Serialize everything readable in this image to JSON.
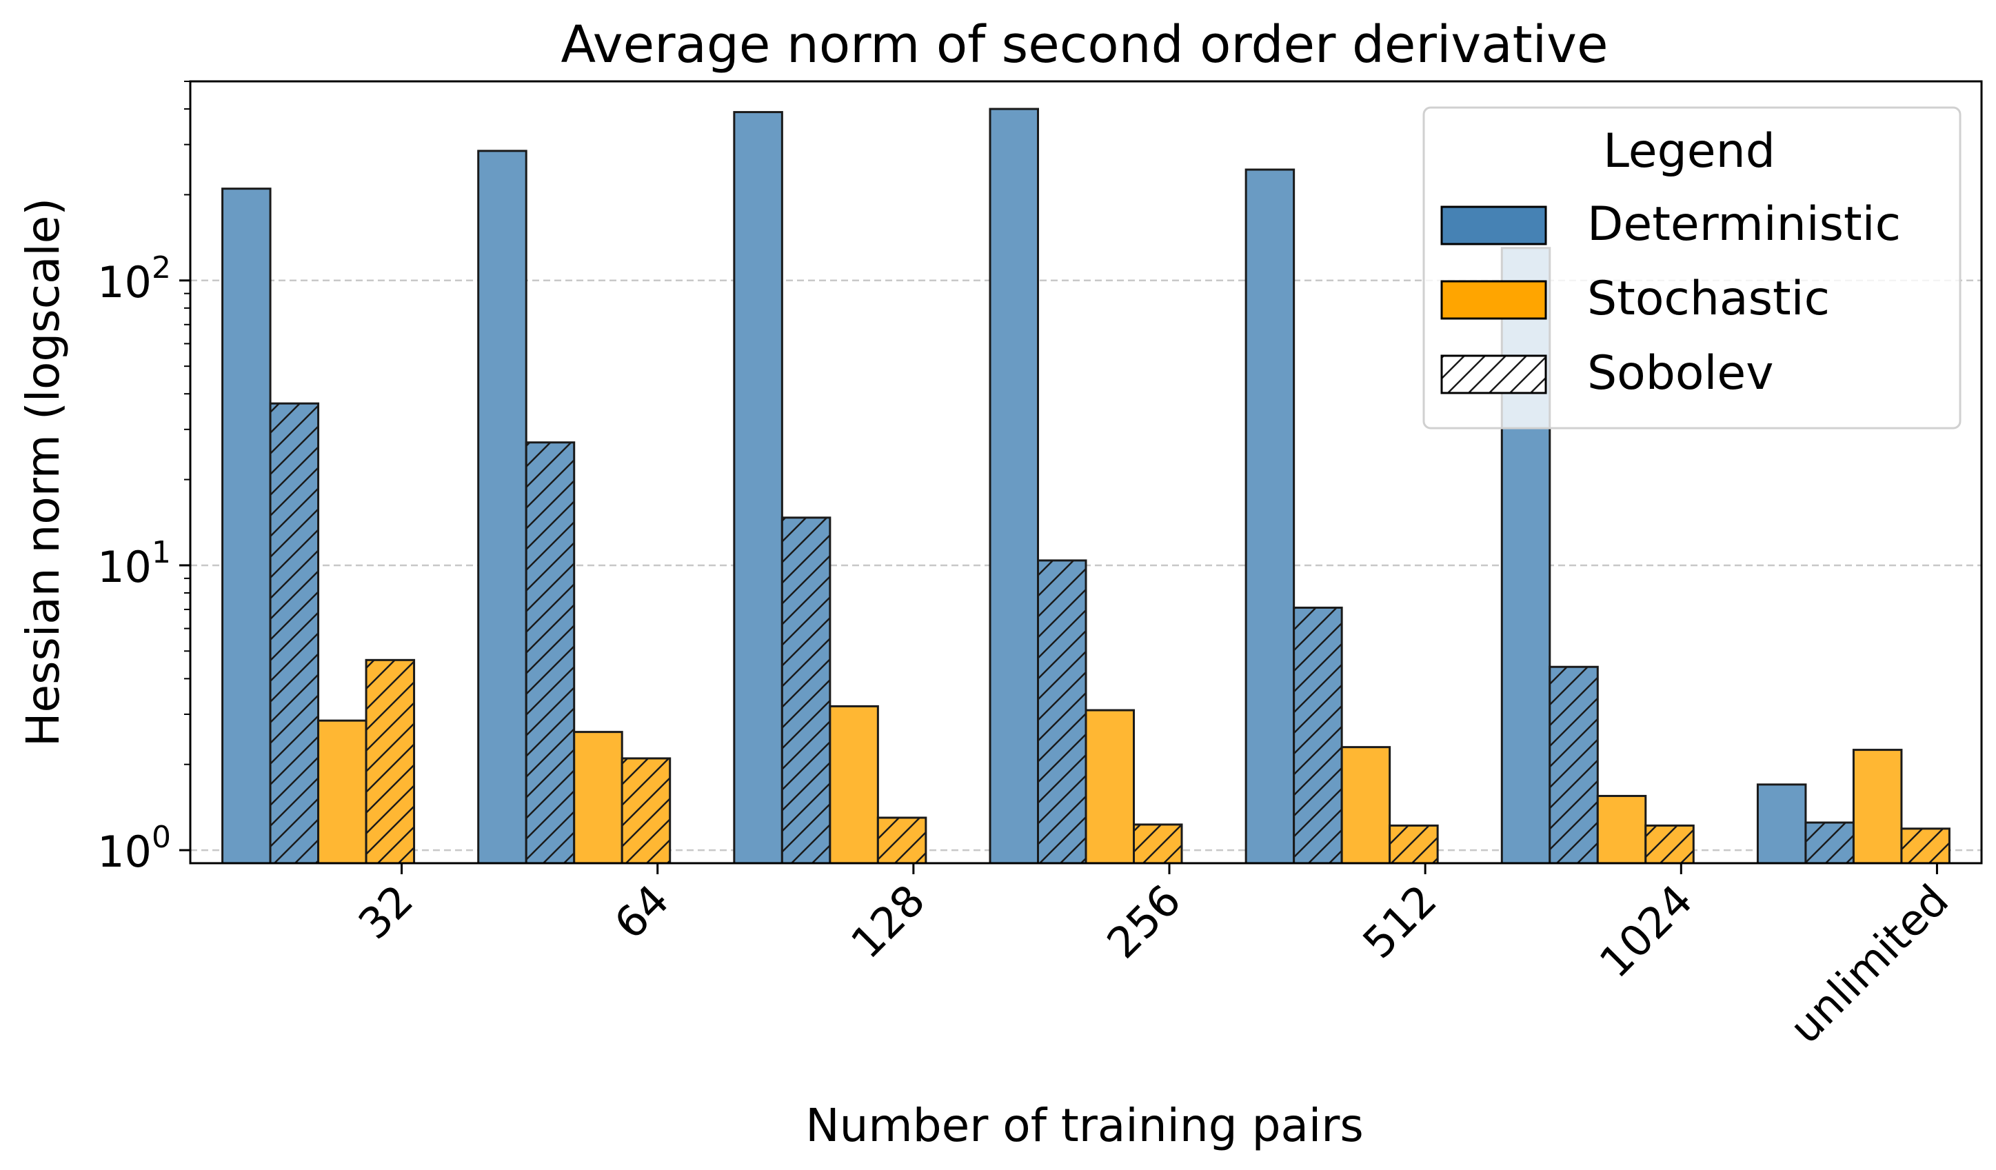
{
  "chart_data": {
    "type": "bar",
    "title": "Average norm of second order derivative",
    "xlabel": "Number of training pairs",
    "ylabel": "Hessian norm (logscale)",
    "yscale": "log",
    "ylim": [
      0.9,
      500
    ],
    "yticks": [
      {
        "value": 1,
        "base": "10",
        "exp": "0"
      },
      {
        "value": 10,
        "base": "10",
        "exp": "1"
      },
      {
        "value": 100,
        "base": "10",
        "exp": "2"
      }
    ],
    "grid": "y-major dashed",
    "categories": [
      "32",
      "64",
      "128",
      "256",
      "512",
      "1024",
      "unlimited"
    ],
    "series": [
      {
        "name": "Deterministic",
        "sobolev": false,
        "color": "#6a9bc3",
        "values": [
          210,
          285,
          390,
          400,
          245,
          130,
          1.7
        ]
      },
      {
        "name": "Deterministic + Sobolev",
        "sobolev": true,
        "color": "#6a9bc3",
        "values": [
          37,
          27,
          14.7,
          10.4,
          7.1,
          4.4,
          1.25
        ]
      },
      {
        "name": "Stochastic",
        "sobolev": false,
        "color": "#ffb733",
        "values": [
          2.85,
          2.6,
          3.2,
          3.1,
          2.3,
          1.55,
          2.25
        ]
      },
      {
        "name": "Stochastic + Sobolev",
        "sobolev": true,
        "color": "#ffb733",
        "values": [
          4.65,
          2.1,
          1.3,
          1.23,
          1.22,
          1.22,
          1.19
        ]
      }
    ],
    "legend": {
      "title": "Legend",
      "position": "top-right",
      "entries": [
        {
          "label": "Deterministic",
          "kind": "solid",
          "color": "#4682b4"
        },
        {
          "label": "Stochastic",
          "kind": "solid",
          "color": "#ffa500"
        },
        {
          "label": "Sobolev",
          "kind": "hatch",
          "color": "#ffffff"
        }
      ]
    }
  }
}
